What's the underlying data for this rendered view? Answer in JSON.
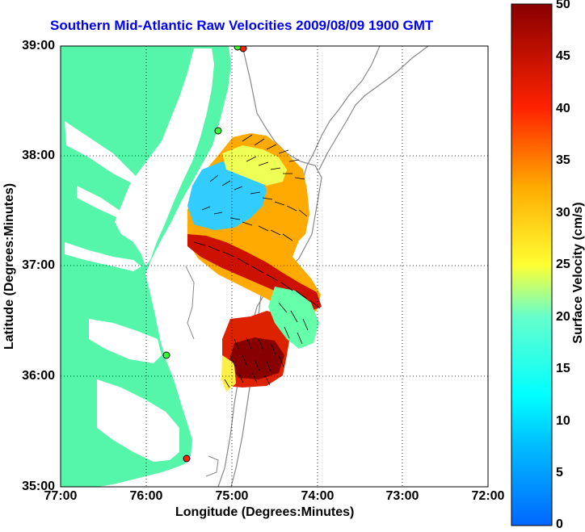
{
  "title": "Southern Mid-Atlantic Raw Velocities 2009/08/09 1900 GMT",
  "xlabel": "Longitude (Degrees:Minutes)",
  "ylabel": "Latitude (Degrees:Minutes)",
  "colorbar_label": "Surface Velocity (cm/s)",
  "x_ticks": [
    "77:00",
    "76:00",
    "75:00",
    "74:00",
    "73:00",
    "72:00"
  ],
  "y_ticks": [
    "39:00",
    "38:00",
    "37:00",
    "36:00",
    "35:00"
  ],
  "colorbar_ticks": [
    "50",
    "45",
    "40",
    "35",
    "30",
    "25",
    "20",
    "15",
    "10",
    "5",
    "0"
  ],
  "colors": {
    "land": "#55f5aa",
    "title": "#0000ff",
    "bathymetry": "#808080"
  },
  "chart_data": {
    "type": "heatmap",
    "title": "Southern Mid-Atlantic Raw Velocities 2009/08/09 1900 GMT",
    "xlabel": "Longitude (Degrees:Minutes)",
    "ylabel": "Latitude (Degrees:Minutes)",
    "xlim": [
      -77,
      -72
    ],
    "ylim": [
      35,
      39
    ],
    "colorbar": {
      "label": "Surface Velocity (cm/s)",
      "range": [
        0,
        50
      ],
      "colormap": "jet"
    },
    "grid": true
  }
}
